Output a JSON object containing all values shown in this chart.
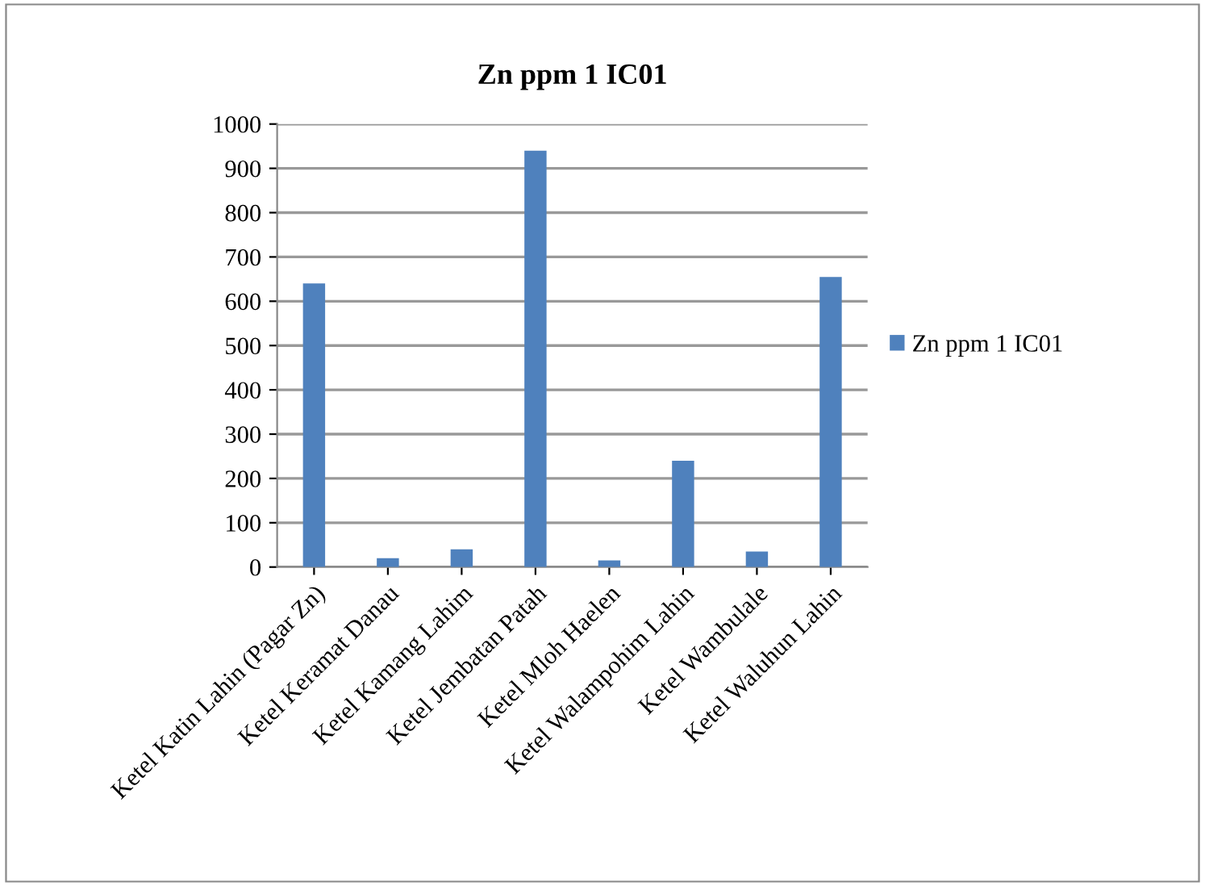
{
  "chart_data": {
    "type": "bar",
    "title": "Zn ppm 1 IC01",
    "categories": [
      "Ketel Katin Lahin (Pagar Zn)",
      "Ketel Keramat Danau",
      "Ketel Kamang Lahim",
      "Ketel Jembatan Patah",
      "Ketel Mloh Haelen",
      "Ketel Walampohim Lahin",
      "Ketel Wambulale",
      "Ketel Waluhun Lahin"
    ],
    "series": [
      {
        "name": "Zn ppm 1 IC01",
        "color": "#4f81bd",
        "values": [
          640,
          20,
          40,
          940,
          15,
          240,
          35,
          655
        ]
      }
    ],
    "ylim": [
      0,
      1000
    ],
    "yticks": [
      0,
      100,
      200,
      300,
      400,
      500,
      600,
      700,
      800,
      900,
      1000
    ],
    "grid": "y",
    "legend": "right"
  }
}
